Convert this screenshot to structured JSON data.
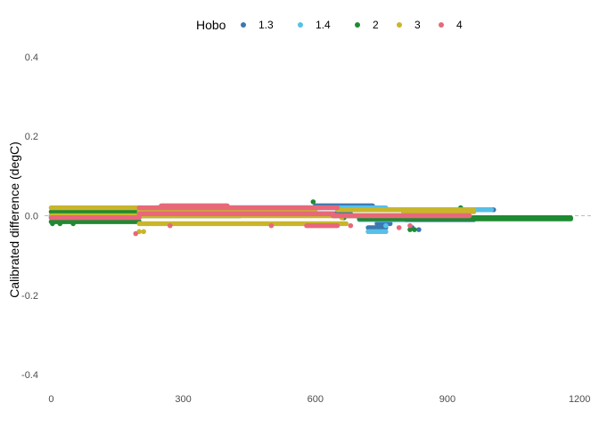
{
  "chart_data": {
    "type": "scatter",
    "title": "",
    "xlabel": "",
    "ylabel": "Calibrated difference (degC)",
    "xlim": [
      -15,
      1230
    ],
    "ylim": [
      -0.42,
      0.42
    ],
    "x_ticks": [
      0,
      300,
      600,
      900,
      1200
    ],
    "y_ticks": [
      0.4,
      0.2,
      0.0,
      -0.2,
      -0.4
    ],
    "x_tick_labels": [
      "0",
      "300",
      "600",
      "900",
      "1200"
    ],
    "y_tick_labels": [
      "0.4",
      "0.2",
      "0.0",
      "-0.2",
      "-0.4"
    ],
    "reference_line": {
      "y": 0.0,
      "style": "dashed",
      "color": "#bdbdbd"
    },
    "grid": false,
    "legend": {
      "title": "Hobo",
      "position": "top"
    },
    "series": [
      {
        "name": "1.3",
        "color": "#3b78b0",
        "segments": [
          {
            "x0": 0,
            "x1": 170,
            "y": 0.0
          },
          {
            "x0": 170,
            "x1": 420,
            "y": 0.015
          },
          {
            "x0": 240,
            "x1": 610,
            "y": 0.02
          },
          {
            "x0": 420,
            "x1": 680,
            "y": 0.005
          },
          {
            "x0": 600,
            "x1": 730,
            "y": 0.025
          },
          {
            "x0": 700,
            "x1": 1005,
            "y": 0.015
          },
          {
            "x0": 760,
            "x1": 960,
            "y": -0.01
          },
          {
            "x0": 720,
            "x1": 760,
            "y": -0.03
          },
          {
            "x0": 720,
            "x1": 760,
            "y": -0.04
          },
          {
            "x0": 740,
            "x1": 770,
            "y": -0.02
          }
        ],
        "points": [
          {
            "x": 700,
            "y": -0.005
          },
          {
            "x": 820,
            "y": -0.03
          },
          {
            "x": 835,
            "y": -0.035
          }
        ]
      },
      {
        "name": "1.4",
        "color": "#56c0e8",
        "segments": [
          {
            "x0": 0,
            "x1": 170,
            "y": -0.005
          },
          {
            "x0": 170,
            "x1": 600,
            "y": 0.005
          },
          {
            "x0": 600,
            "x1": 760,
            "y": 0.02
          },
          {
            "x0": 760,
            "x1": 1000,
            "y": 0.015
          },
          {
            "x0": 700,
            "x1": 800,
            "y": -0.01
          },
          {
            "x0": 720,
            "x1": 760,
            "y": -0.04
          }
        ],
        "points": [
          {
            "x": 760,
            "y": -0.025
          },
          {
            "x": 780,
            "y": -0.01
          }
        ]
      },
      {
        "name": "2",
        "color": "#1e8a32",
        "segments": [
          {
            "x0": 0,
            "x1": 200,
            "y": -0.015
          },
          {
            "x0": 0,
            "x1": 200,
            "y": 0.01
          },
          {
            "x0": 170,
            "x1": 430,
            "y": 0.0
          },
          {
            "x0": 430,
            "x1": 640,
            "y": 0.005
          },
          {
            "x0": 640,
            "x1": 900,
            "y": 0.0
          },
          {
            "x0": 700,
            "x1": 1180,
            "y": -0.008
          },
          {
            "x0": 900,
            "x1": 1180,
            "y": -0.005
          }
        ],
        "points": [
          {
            "x": 3,
            "y": -0.02
          },
          {
            "x": 20,
            "y": -0.02
          },
          {
            "x": 50,
            "y": -0.02
          },
          {
            "x": 595,
            "y": 0.035
          },
          {
            "x": 665,
            "y": -0.005
          },
          {
            "x": 815,
            "y": -0.035
          },
          {
            "x": 825,
            "y": -0.035
          },
          {
            "x": 930,
            "y": 0.02
          }
        ]
      },
      {
        "name": "3",
        "color": "#c9b52b",
        "segments": [
          {
            "x0": 0,
            "x1": 200,
            "y": 0.02
          },
          {
            "x0": 0,
            "x1": 200,
            "y": 0.0
          },
          {
            "x0": 200,
            "x1": 670,
            "y": -0.02
          },
          {
            "x0": 200,
            "x1": 650,
            "y": 0.0
          },
          {
            "x0": 650,
            "x1": 960,
            "y": 0.015
          },
          {
            "x0": 800,
            "x1": 960,
            "y": 0.01
          },
          {
            "x0": 200,
            "x1": 600,
            "y": 0.01
          }
        ],
        "points": [
          {
            "x": 200,
            "y": -0.04
          },
          {
            "x": 210,
            "y": -0.04
          },
          {
            "x": 660,
            "y": -0.005
          }
        ]
      },
      {
        "name": "4",
        "color": "#e8687a",
        "segments": [
          {
            "x0": 0,
            "x1": 200,
            "y": -0.005
          },
          {
            "x0": 200,
            "x1": 520,
            "y": 0.02
          },
          {
            "x0": 200,
            "x1": 640,
            "y": 0.005
          },
          {
            "x0": 520,
            "x1": 650,
            "y": 0.02
          },
          {
            "x0": 580,
            "x1": 650,
            "y": -0.025
          },
          {
            "x0": 640,
            "x1": 950,
            "y": 0.0
          },
          {
            "x0": 250,
            "x1": 400,
            "y": 0.025
          }
        ],
        "points": [
          {
            "x": 192,
            "y": -0.045
          },
          {
            "x": 270,
            "y": -0.025
          },
          {
            "x": 500,
            "y": -0.025
          },
          {
            "x": 680,
            "y": -0.025
          },
          {
            "x": 790,
            "y": -0.03
          },
          {
            "x": 815,
            "y": -0.025
          }
        ]
      }
    ]
  }
}
